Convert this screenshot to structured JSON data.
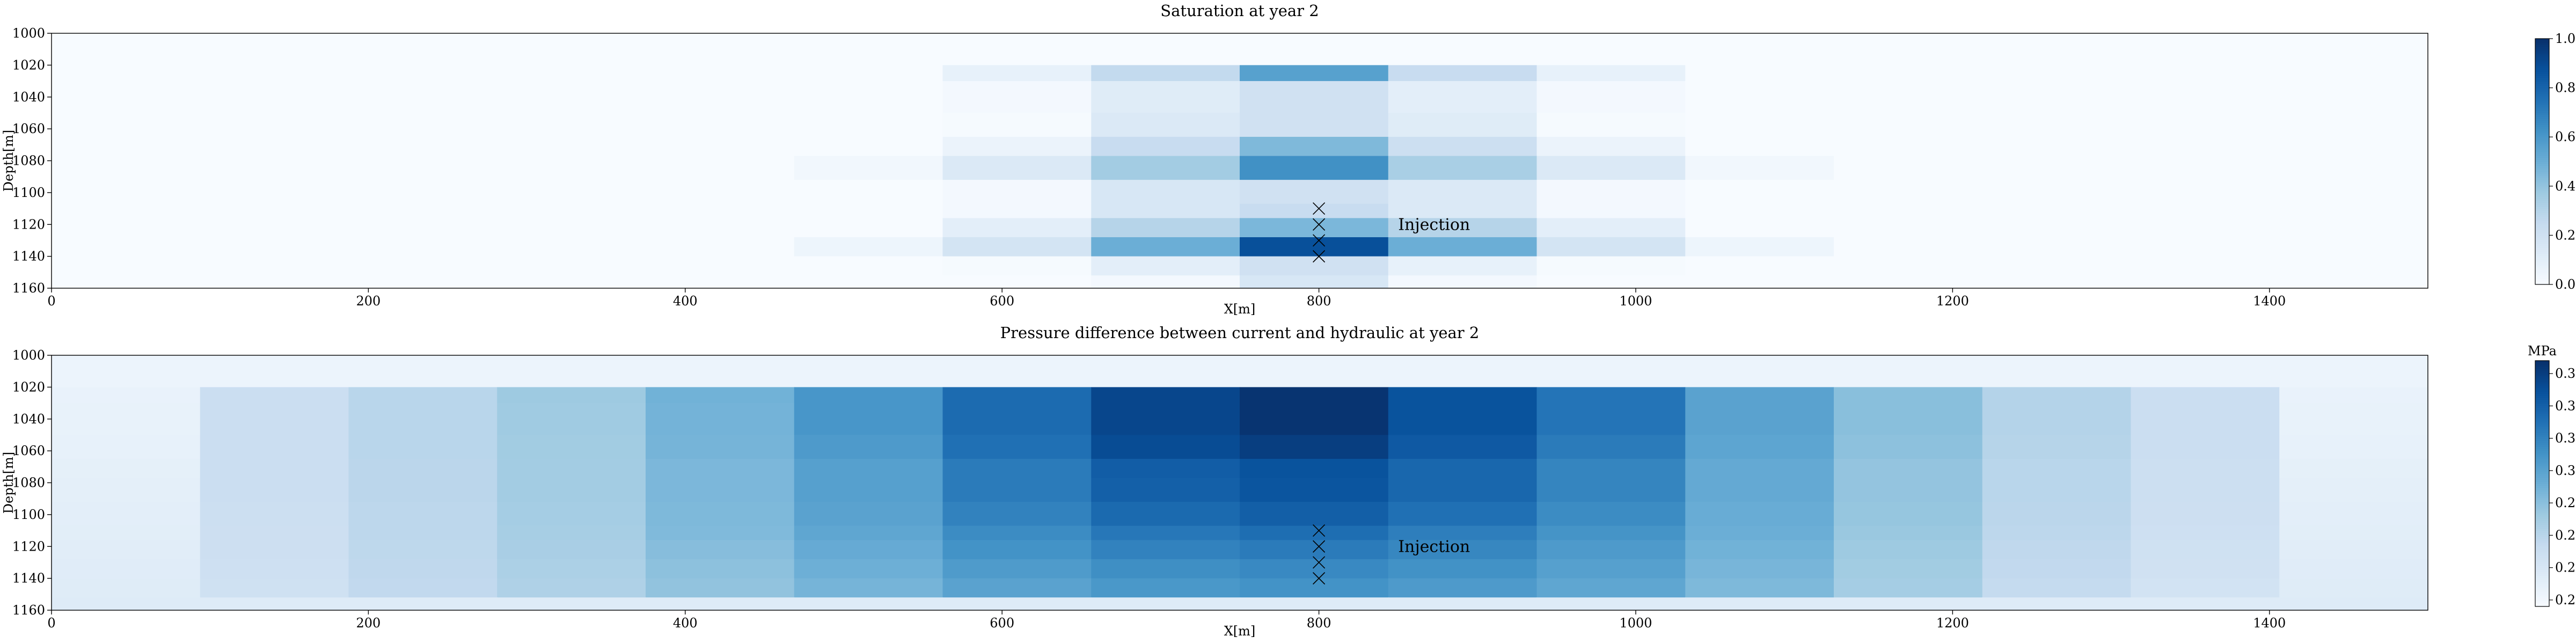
{
  "chart_data": [
    {
      "type": "heatmap",
      "title": "Saturation at year 2",
      "xlabel": "X[m]",
      "ylabel": "Depth[m]",
      "xlim": [
        0,
        1500
      ],
      "ylim": [
        1160,
        1000
      ],
      "xticks": [
        "0",
        "200",
        "400",
        "600",
        "800",
        "1000",
        "1200",
        "1400"
      ],
      "yticks": [
        "1000",
        "1020",
        "1040",
        "1060",
        "1080",
        "1100",
        "1120",
        "1140",
        "1160"
      ],
      "colorbar": {
        "min": 0.0,
        "max": 1.0,
        "ticks": [
          "0.0",
          "0.2",
          "0.4",
          "0.6",
          "0.8",
          "1.0"
        ],
        "label": ""
      },
      "grid": {
        "x_edges": [
          0,
          93.75,
          187.5,
          281.25,
          375,
          468.75,
          562.5,
          656.25,
          750,
          843.75,
          937.5,
          1031.25,
          1125,
          1218.75,
          1312.5,
          1406.25,
          1500
        ],
        "row_edges": [
          1000,
          1020,
          1030,
          1050,
          1065,
          1077,
          1092,
          1107,
          1116,
          1128,
          1140,
          1152,
          1160
        ]
      },
      "values": [
        [
          0,
          0,
          0,
          0,
          0,
          0,
          0,
          0,
          0,
          0,
          0,
          0,
          0,
          0,
          0,
          0
        ],
        [
          0,
          0,
          0,
          0,
          0,
          0,
          0.08,
          0.26,
          0.56,
          0.24,
          0.08,
          0,
          0,
          0,
          0,
          0
        ],
        [
          0,
          0,
          0,
          0,
          0,
          0,
          0.02,
          0.12,
          0.2,
          0.1,
          0.02,
          0,
          0,
          0,
          0,
          0
        ],
        [
          0,
          0,
          0,
          0,
          0,
          0,
          0.01,
          0.14,
          0.2,
          0.12,
          0.01,
          0,
          0,
          0,
          0,
          0
        ],
        [
          0,
          0,
          0,
          0,
          0,
          0,
          0.06,
          0.24,
          0.45,
          0.22,
          0.06,
          0,
          0,
          0,
          0,
          0
        ],
        [
          0,
          0,
          0,
          0,
          0,
          0.03,
          0.14,
          0.36,
          0.63,
          0.34,
          0.14,
          0.03,
          0,
          0,
          0,
          0
        ],
        [
          0,
          0,
          0,
          0,
          0,
          0,
          0.02,
          0.16,
          0.2,
          0.14,
          0.02,
          0,
          0,
          0,
          0,
          0
        ],
        [
          0,
          0,
          0,
          0,
          0,
          0,
          0.02,
          0.16,
          0.24,
          0.14,
          0.02,
          0,
          0,
          0,
          0,
          0
        ],
        [
          0,
          0,
          0,
          0,
          0,
          0,
          0.1,
          0.3,
          0.46,
          0.3,
          0.1,
          0,
          0,
          0,
          0,
          0
        ],
        [
          0,
          0,
          0,
          0,
          0,
          0.05,
          0.18,
          0.5,
          0.88,
          0.5,
          0.18,
          0.05,
          0,
          0,
          0,
          0
        ],
        [
          0,
          0,
          0,
          0,
          0,
          0,
          0.01,
          0.1,
          0.2,
          0.08,
          0.01,
          0,
          0,
          0,
          0,
          0
        ],
        [
          0,
          0,
          0,
          0,
          0,
          0,
          0,
          0.02,
          0.16,
          0.02,
          0,
          0,
          0,
          0,
          0,
          0
        ]
      ],
      "markers": [
        {
          "x": 800,
          "y": 1110
        },
        {
          "x": 800,
          "y": 1120
        },
        {
          "x": 800,
          "y": 1130
        },
        {
          "x": 800,
          "y": 1140
        }
      ],
      "annotation": {
        "text": "Injection",
        "x": 850,
        "y": 1120
      }
    },
    {
      "type": "heatmap",
      "title": "Pressure difference between current and hydraulic at year 2",
      "xlabel": "X[m]",
      "ylabel": "Depth[m]",
      "xlim": [
        0,
        1500
      ],
      "ylim": [
        1160,
        1000
      ],
      "xticks": [
        "0",
        "200",
        "400",
        "600",
        "800",
        "1000",
        "1200",
        "1400"
      ],
      "yticks": [
        "1000",
        "1020",
        "1040",
        "1060",
        "1080",
        "1100",
        "1120",
        "1140",
        "1160"
      ],
      "colorbar": {
        "min": 0.195,
        "max": 0.385,
        "ticks": [
          "0.200",
          "0.225",
          "0.250",
          "0.275",
          "0.300",
          "0.325",
          "0.350",
          "0.375"
        ],
        "label": "MPa"
      },
      "grid": {
        "x_edges": [
          0,
          93.75,
          187.5,
          281.25,
          375,
          468.75,
          562.5,
          656.25,
          750,
          843.75,
          937.5,
          1031.25,
          1125,
          1218.75,
          1312.5,
          1406.25,
          1500
        ],
        "row_edges": [
          1000,
          1020,
          1030,
          1050,
          1065,
          1077,
          1092,
          1107,
          1116,
          1128,
          1140,
          1152,
          1160
        ]
      },
      "values": [
        [
          0.205,
          0.205,
          0.205,
          0.205,
          0.205,
          0.205,
          0.205,
          0.205,
          0.205,
          0.205,
          0.205,
          0.205,
          0.205,
          0.205,
          0.205,
          0.205
        ],
        [
          0.208,
          0.238,
          0.25,
          0.266,
          0.287,
          0.31,
          0.342,
          0.369,
          0.382,
          0.36,
          0.335,
          0.3,
          0.276,
          0.253,
          0.238,
          0.208
        ],
        [
          0.209,
          0.238,
          0.25,
          0.265,
          0.286,
          0.31,
          0.342,
          0.369,
          0.382,
          0.36,
          0.335,
          0.3,
          0.276,
          0.253,
          0.238,
          0.209
        ],
        [
          0.21,
          0.238,
          0.25,
          0.264,
          0.285,
          0.307,
          0.338,
          0.365,
          0.375,
          0.355,
          0.33,
          0.298,
          0.274,
          0.252,
          0.238,
          0.21
        ],
        [
          0.212,
          0.238,
          0.249,
          0.263,
          0.282,
          0.302,
          0.33,
          0.352,
          0.36,
          0.345,
          0.323,
          0.294,
          0.271,
          0.25,
          0.237,
          0.212
        ],
        [
          0.213,
          0.238,
          0.249,
          0.263,
          0.282,
          0.302,
          0.33,
          0.35,
          0.358,
          0.345,
          0.323,
          0.294,
          0.271,
          0.25,
          0.237,
          0.213
        ],
        [
          0.214,
          0.237,
          0.248,
          0.262,
          0.281,
          0.3,
          0.325,
          0.343,
          0.351,
          0.338,
          0.318,
          0.292,
          0.27,
          0.249,
          0.236,
          0.214
        ],
        [
          0.215,
          0.236,
          0.248,
          0.261,
          0.28,
          0.297,
          0.318,
          0.333,
          0.34,
          0.328,
          0.312,
          0.29,
          0.268,
          0.248,
          0.235,
          0.215
        ],
        [
          0.216,
          0.236,
          0.247,
          0.26,
          0.277,
          0.293,
          0.313,
          0.325,
          0.33,
          0.322,
          0.307,
          0.287,
          0.266,
          0.246,
          0.234,
          0.216
        ],
        [
          0.217,
          0.235,
          0.246,
          0.258,
          0.274,
          0.289,
          0.306,
          0.316,
          0.32,
          0.314,
          0.302,
          0.284,
          0.264,
          0.245,
          0.233,
          0.217
        ],
        [
          0.218,
          0.234,
          0.245,
          0.256,
          0.272,
          0.285,
          0.3,
          0.309,
          0.313,
          0.307,
          0.297,
          0.281,
          0.262,
          0.243,
          0.231,
          0.218
        ],
        [
          0.219,
          0.219,
          0.219,
          0.219,
          0.219,
          0.219,
          0.219,
          0.219,
          0.219,
          0.219,
          0.219,
          0.219,
          0.219,
          0.219,
          0.219,
          0.219
        ]
      ],
      "markers": [
        {
          "x": 800,
          "y": 1110
        },
        {
          "x": 800,
          "y": 1120
        },
        {
          "x": 800,
          "y": 1130
        },
        {
          "x": 800,
          "y": 1140
        }
      ],
      "annotation": {
        "text": "Injection",
        "x": 850,
        "y": 1120
      }
    }
  ]
}
